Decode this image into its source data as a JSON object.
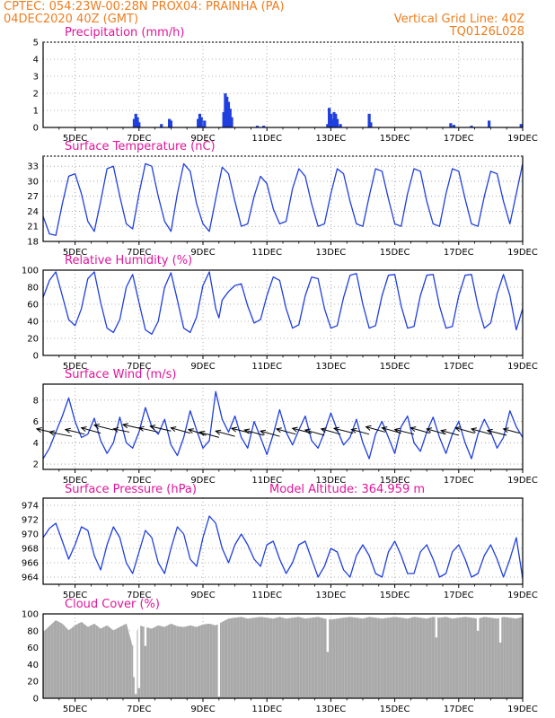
{
  "header": {
    "line1_left": "CPTEC:   054:23W-00:28N   PROX04: PRAINHA (PA)",
    "line2_left": "04DEC2020 40Z (GMT)",
    "line2_right": "Vertical Grid Line: 40Z",
    "line3_right": "TQ0126L028"
  },
  "colors": {
    "header": "#f07d1e",
    "title": "#e0159a",
    "series": "#1f3fe0",
    "cloud": "#a9a9a9",
    "grid": "#999999"
  },
  "x_axis": {
    "range_days": [
      4.0,
      19.0
    ],
    "ticks": [
      {
        "day": 5,
        "label": "5DEC"
      },
      {
        "day": 7,
        "label": "7DEC"
      },
      {
        "day": 9,
        "label": "9DEC"
      },
      {
        "day": 11,
        "label": "11DEC"
      },
      {
        "day": 13,
        "label": "13DEC"
      },
      {
        "day": 15,
        "label": "15DEC"
      },
      {
        "day": 17,
        "label": "17DEC"
      },
      {
        "day": 19,
        "label": "19DEC"
      }
    ]
  },
  "chart_data": [
    {
      "type": "bar",
      "title": "Precipitation (mm/h)",
      "ylim": [
        0,
        5
      ],
      "yticks": [
        0,
        1,
        2,
        3,
        4,
        5
      ],
      "bars": [
        [
          6.85,
          0.5
        ],
        [
          6.9,
          0.8
        ],
        [
          6.95,
          0.6
        ],
        [
          7.0,
          0.3
        ],
        [
          7.7,
          0.2
        ],
        [
          7.95,
          0.5
        ],
        [
          8.0,
          0.4
        ],
        [
          8.85,
          0.5
        ],
        [
          8.9,
          0.8
        ],
        [
          8.95,
          0.6
        ],
        [
          9.05,
          0.4
        ],
        [
          9.65,
          0.9
        ],
        [
          9.7,
          2.0
        ],
        [
          9.75,
          1.8
        ],
        [
          9.8,
          1.5
        ],
        [
          9.85,
          1.1
        ],
        [
          9.9,
          0.6
        ],
        [
          10.7,
          0.1
        ],
        [
          10.9,
          0.1
        ],
        [
          12.9,
          0.2
        ],
        [
          12.95,
          1.15
        ],
        [
          13.0,
          0.8
        ],
        [
          13.05,
          0.5
        ],
        [
          13.1,
          0.9
        ],
        [
          13.15,
          0.8
        ],
        [
          13.2,
          0.5
        ],
        [
          13.3,
          0.2
        ],
        [
          14.2,
          0.8
        ],
        [
          14.25,
          0.3
        ],
        [
          16.75,
          0.25
        ],
        [
          16.85,
          0.15
        ],
        [
          17.4,
          0.1
        ],
        [
          17.95,
          0.4
        ],
        [
          18.95,
          0.2
        ]
      ]
    },
    {
      "type": "line",
      "title": "Surface Temperature (nC)",
      "ylim": [
        18,
        35
      ],
      "yticks": [
        18,
        21,
        24,
        27,
        30,
        33
      ],
      "x": [
        4.0,
        4.2,
        4.4,
        4.6,
        4.8,
        5.0,
        5.2,
        5.4,
        5.6,
        5.8,
        6.0,
        6.2,
        6.4,
        6.6,
        6.8,
        7.0,
        7.2,
        7.4,
        7.6,
        7.8,
        8.0,
        8.2,
        8.4,
        8.6,
        8.8,
        9.0,
        9.2,
        9.4,
        9.6,
        9.8,
        10.0,
        10.2,
        10.4,
        10.6,
        10.8,
        11.0,
        11.2,
        11.4,
        11.6,
        11.8,
        12.0,
        12.2,
        12.4,
        12.6,
        12.8,
        13.0,
        13.2,
        13.4,
        13.6,
        13.8,
        14.0,
        14.2,
        14.4,
        14.6,
        14.8,
        15.0,
        15.2,
        15.4,
        15.6,
        15.8,
        16.0,
        16.2,
        16.4,
        16.6,
        16.8,
        17.0,
        17.2,
        17.4,
        17.6,
        17.8,
        18.0,
        18.2,
        18.4,
        18.6,
        18.8,
        19.0
      ],
      "y": [
        23.0,
        19.5,
        19.2,
        25.5,
        31.0,
        31.5,
        27.5,
        22.0,
        20.0,
        26.0,
        32.5,
        33.0,
        27.0,
        21.5,
        20.5,
        27.5,
        33.5,
        33.0,
        27.0,
        22.0,
        20.0,
        27.5,
        33.5,
        32.0,
        25.5,
        21.5,
        20.0,
        26.5,
        32.8,
        31.5,
        26.0,
        21.0,
        21.5,
        27.0,
        31.0,
        29.5,
        24.5,
        21.5,
        22.0,
        28.5,
        32.5,
        31.0,
        25.5,
        21.0,
        21.5,
        27.5,
        32.5,
        31.5,
        26.0,
        21.5,
        21.0,
        27.0,
        32.5,
        32.0,
        26.5,
        21.5,
        21.0,
        27.5,
        32.5,
        32.0,
        26.0,
        21.5,
        21.0,
        27.5,
        32.5,
        32.0,
        26.5,
        21.5,
        21.0,
        27.0,
        32.0,
        31.5,
        26.0,
        21.5,
        27.5,
        33.5
      ]
    },
    {
      "type": "line",
      "title": "Relative Humidity (%)",
      "ylim": [
        0,
        100
      ],
      "yticks": [
        0,
        20,
        40,
        60,
        80,
        100
      ],
      "x": [
        4.0,
        4.2,
        4.4,
        4.6,
        4.8,
        5.0,
        5.2,
        5.4,
        5.6,
        5.8,
        6.0,
        6.2,
        6.4,
        6.6,
        6.8,
        7.0,
        7.2,
        7.4,
        7.6,
        7.8,
        8.0,
        8.2,
        8.4,
        8.6,
        8.8,
        9.0,
        9.2,
        9.4,
        9.5,
        9.6,
        9.8,
        10.0,
        10.2,
        10.4,
        10.6,
        10.8,
        11.0,
        11.2,
        11.4,
        11.6,
        11.8,
        12.0,
        12.2,
        12.4,
        12.6,
        12.8,
        13.0,
        13.2,
        13.4,
        13.6,
        13.8,
        14.0,
        14.2,
        14.4,
        14.6,
        14.8,
        15.0,
        15.2,
        15.4,
        15.6,
        15.8,
        16.0,
        16.2,
        16.4,
        16.6,
        16.8,
        17.0,
        17.2,
        17.4,
        17.6,
        17.8,
        18.0,
        18.2,
        18.4,
        18.6,
        18.8,
        19.0
      ],
      "y": [
        68,
        88,
        98,
        70,
        42,
        35,
        55,
        90,
        98,
        62,
        32,
        27,
        42,
        80,
        95,
        62,
        30,
        25,
        40,
        80,
        97,
        65,
        32,
        27,
        45,
        82,
        98,
        55,
        44,
        65,
        75,
        82,
        84,
        58,
        38,
        42,
        70,
        92,
        88,
        55,
        32,
        36,
        70,
        92,
        90,
        55,
        32,
        35,
        68,
        94,
        96,
        60,
        32,
        35,
        70,
        94,
        95,
        58,
        32,
        34,
        70,
        94,
        95,
        58,
        32,
        34,
        70,
        94,
        95,
        58,
        32,
        38,
        72,
        95,
        70,
        30,
        55
      ]
    },
    {
      "type": "line",
      "title": "Surface Wind (m/s)",
      "ylim": [
        1.5,
        9.5
      ],
      "yticks": [
        2,
        4,
        6,
        8
      ],
      "x": [
        4.0,
        4.2,
        4.4,
        4.6,
        4.8,
        5.0,
        5.2,
        5.4,
        5.6,
        5.8,
        6.0,
        6.2,
        6.4,
        6.6,
        6.8,
        7.0,
        7.2,
        7.4,
        7.6,
        7.8,
        8.0,
        8.2,
        8.4,
        8.6,
        8.8,
        9.0,
        9.2,
        9.4,
        9.6,
        9.8,
        10.0,
        10.2,
        10.4,
        10.6,
        10.8,
        11.0,
        11.2,
        11.4,
        11.6,
        11.8,
        12.0,
        12.2,
        12.4,
        12.6,
        12.8,
        13.0,
        13.2,
        13.4,
        13.6,
        13.8,
        14.0,
        14.2,
        14.4,
        14.6,
        14.8,
        15.0,
        15.2,
        15.4,
        15.6,
        15.8,
        16.0,
        16.2,
        16.4,
        16.6,
        16.8,
        17.0,
        17.2,
        17.4,
        17.6,
        17.8,
        18.0,
        18.2,
        18.4,
        18.6,
        18.8,
        19.0
      ],
      "y": [
        2.5,
        3.5,
        5.0,
        6.5,
        8.2,
        6.0,
        4.5,
        4.8,
        6.3,
        4.2,
        3.0,
        4.0,
        6.4,
        4.0,
        3.5,
        5.0,
        7.3,
        5.5,
        4.8,
        6.2,
        3.8,
        2.8,
        4.5,
        7.0,
        5.2,
        3.5,
        4.2,
        8.8,
        6.2,
        5.0,
        6.5,
        4.5,
        3.5,
        6.0,
        4.5,
        2.9,
        4.8,
        7.1,
        5.0,
        3.8,
        5.2,
        6.5,
        4.2,
        3.5,
        5.0,
        6.8,
        5.2,
        3.8,
        4.5,
        6.2,
        4.0,
        2.5,
        4.8,
        6.0,
        4.5,
        3.0,
        5.5,
        6.5,
        4.0,
        3.2,
        5.0,
        6.4,
        4.5,
        3.0,
        4.8,
        6.0,
        4.0,
        2.5,
        4.8,
        6.2,
        5.0,
        3.5,
        4.5,
        7.0,
        5.5,
        4.5
      ],
      "arrows": [
        [
          4.4,
          4.9,
          -0.6,
          0.4
        ],
        [
          4.9,
          4.6,
          -0.7,
          0.4
        ],
        [
          5.3,
          4.8,
          -0.6,
          0.45
        ],
        [
          5.8,
          4.9,
          -0.6,
          0.5
        ],
        [
          6.2,
          5.2,
          -0.6,
          0.45
        ],
        [
          6.7,
          5.0,
          -0.5,
          0.3
        ],
        [
          7.1,
          5.3,
          -0.6,
          0.4
        ],
        [
          7.6,
          5.0,
          -0.6,
          0.4
        ],
        [
          8.0,
          5.1,
          -0.65,
          0.45
        ],
        [
          8.6,
          4.9,
          -0.6,
          0.5
        ],
        [
          9.1,
          4.7,
          -0.55,
          0.55
        ],
        [
          9.5,
          4.5,
          -0.6,
          0.5
        ],
        [
          10.0,
          4.6,
          -0.6,
          0.5
        ],
        [
          10.5,
          4.9,
          -0.6,
          0.45
        ],
        [
          10.9,
          4.7,
          -0.6,
          0.5
        ],
        [
          11.4,
          4.6,
          -0.6,
          0.5
        ],
        [
          11.9,
          4.8,
          -0.6,
          0.5
        ],
        [
          12.4,
          4.9,
          -0.6,
          0.45
        ],
        [
          12.8,
          4.7,
          -0.6,
          0.5
        ],
        [
          13.3,
          4.8,
          -0.6,
          0.5
        ],
        [
          13.7,
          4.9,
          -0.6,
          0.45
        ],
        [
          14.2,
          4.8,
          -0.55,
          0.45
        ],
        [
          14.7,
          5.0,
          -0.6,
          0.5
        ],
        [
          15.2,
          4.9,
          -0.6,
          0.5
        ],
        [
          15.6,
          4.8,
          -0.6,
          0.45
        ],
        [
          16.1,
          4.9,
          -0.6,
          0.5
        ],
        [
          16.6,
          4.8,
          -0.6,
          0.5
        ],
        [
          17.0,
          4.7,
          -0.55,
          0.45
        ],
        [
          17.5,
          4.9,
          -0.6,
          0.5
        ],
        [
          18.0,
          4.8,
          -0.6,
          0.5
        ],
        [
          18.5,
          4.7,
          -0.6,
          0.45
        ],
        [
          18.9,
          4.9,
          -0.5,
          0.4
        ]
      ]
    },
    {
      "type": "line",
      "title": "Surface Pressure (hPa)",
      "annotation": "Model Altitude: 364.959  m",
      "ylim": [
        963,
        975
      ],
      "yticks": [
        964,
        966,
        968,
        970,
        972,
        974
      ],
      "x": [
        4.0,
        4.2,
        4.4,
        4.6,
        4.8,
        5.0,
        5.2,
        5.4,
        5.6,
        5.8,
        6.0,
        6.2,
        6.4,
        6.6,
        6.8,
        7.0,
        7.2,
        7.4,
        7.6,
        7.8,
        8.0,
        8.2,
        8.4,
        8.6,
        8.8,
        9.0,
        9.2,
        9.4,
        9.6,
        9.8,
        10.0,
        10.2,
        10.4,
        10.6,
        10.8,
        11.0,
        11.2,
        11.4,
        11.6,
        11.8,
        12.0,
        12.2,
        12.4,
        12.6,
        12.8,
        13.0,
        13.2,
        13.4,
        13.6,
        13.8,
        14.0,
        14.2,
        14.4,
        14.6,
        14.8,
        15.0,
        15.2,
        15.4,
        15.6,
        15.8,
        16.0,
        16.2,
        16.4,
        16.6,
        16.8,
        17.0,
        17.2,
        17.4,
        17.6,
        17.8,
        18.0,
        18.2,
        18.4,
        18.6,
        18.8,
        19.0
      ],
      "y": [
        969.5,
        970.8,
        971.5,
        969.0,
        966.5,
        968.5,
        971.0,
        970.5,
        967.0,
        965.0,
        968.5,
        971.0,
        969.5,
        966.0,
        964.5,
        967.5,
        970.5,
        969.5,
        966.0,
        964.5,
        968.0,
        971.0,
        970.0,
        966.5,
        965.5,
        969.5,
        972.5,
        971.5,
        968.0,
        966.0,
        968.5,
        970.0,
        968.5,
        966.5,
        965.5,
        968.5,
        969.0,
        966.5,
        964.5,
        966.0,
        968.5,
        969.0,
        966.5,
        964.0,
        965.5,
        968.0,
        967.5,
        965.0,
        964.0,
        967.0,
        968.5,
        967.0,
        964.5,
        964.0,
        967.5,
        969.0,
        967.0,
        964.5,
        964.5,
        967.5,
        968.5,
        966.5,
        964.0,
        964.5,
        967.5,
        968.5,
        966.5,
        964.0,
        964.5,
        967.0,
        968.5,
        966.5,
        964.0,
        966.5,
        969.5,
        963.8
      ]
    },
    {
      "type": "bar",
      "title": "Cloud Cover (%)",
      "ylim": [
        0,
        100
      ],
      "yticks": [
        0,
        20,
        40,
        60,
        80,
        100
      ],
      "x": [
        4.0,
        4.2,
        4.4,
        4.6,
        4.8,
        5.0,
        5.2,
        5.4,
        5.6,
        5.8,
        6.0,
        6.2,
        6.4,
        6.6,
        6.8,
        7.0,
        7.2,
        7.4,
        7.6,
        7.8,
        8.0,
        8.2,
        8.4,
        8.6,
        8.8,
        9.0,
        9.2,
        9.4,
        9.6,
        9.8,
        10.0,
        10.2,
        10.4,
        10.6,
        10.8,
        11.0,
        11.2,
        11.4,
        11.6,
        11.8,
        12.0,
        12.2,
        12.4,
        12.6,
        12.8,
        13.0,
        13.2,
        13.4,
        13.6,
        13.8,
        14.0,
        14.2,
        14.4,
        14.6,
        14.8,
        15.0,
        15.2,
        15.4,
        15.6,
        15.8,
        16.0,
        16.2,
        16.4,
        16.6,
        16.8,
        17.0,
        17.2,
        17.4,
        17.6,
        17.8,
        18.0,
        18.2,
        18.4,
        18.6,
        18.8,
        19.0
      ],
      "y": [
        78,
        85,
        92,
        88,
        80,
        86,
        90,
        84,
        88,
        82,
        86,
        80,
        84,
        88,
        60,
        86,
        84,
        82,
        86,
        84,
        88,
        85,
        84,
        86,
        84,
        87,
        88,
        86,
        90,
        94,
        95,
        96,
        94,
        95,
        96,
        95,
        94,
        96,
        94,
        95,
        96,
        94,
        95,
        96,
        94,
        93,
        94,
        95,
        96,
        95,
        94,
        96,
        95,
        94,
        95,
        96,
        95,
        94,
        96,
        95,
        94,
        96,
        95,
        96,
        94,
        95,
        96,
        95,
        94,
        96,
        95,
        94,
        96,
        95,
        94,
        96
      ],
      "dips": [
        [
          6.85,
          25
        ],
        [
          6.9,
          5
        ],
        [
          7.0,
          12
        ],
        [
          7.2,
          62
        ],
        [
          9.5,
          2
        ],
        [
          12.9,
          55
        ],
        [
          16.3,
          72
        ],
        [
          17.6,
          80
        ],
        [
          18.3,
          66
        ]
      ]
    }
  ]
}
